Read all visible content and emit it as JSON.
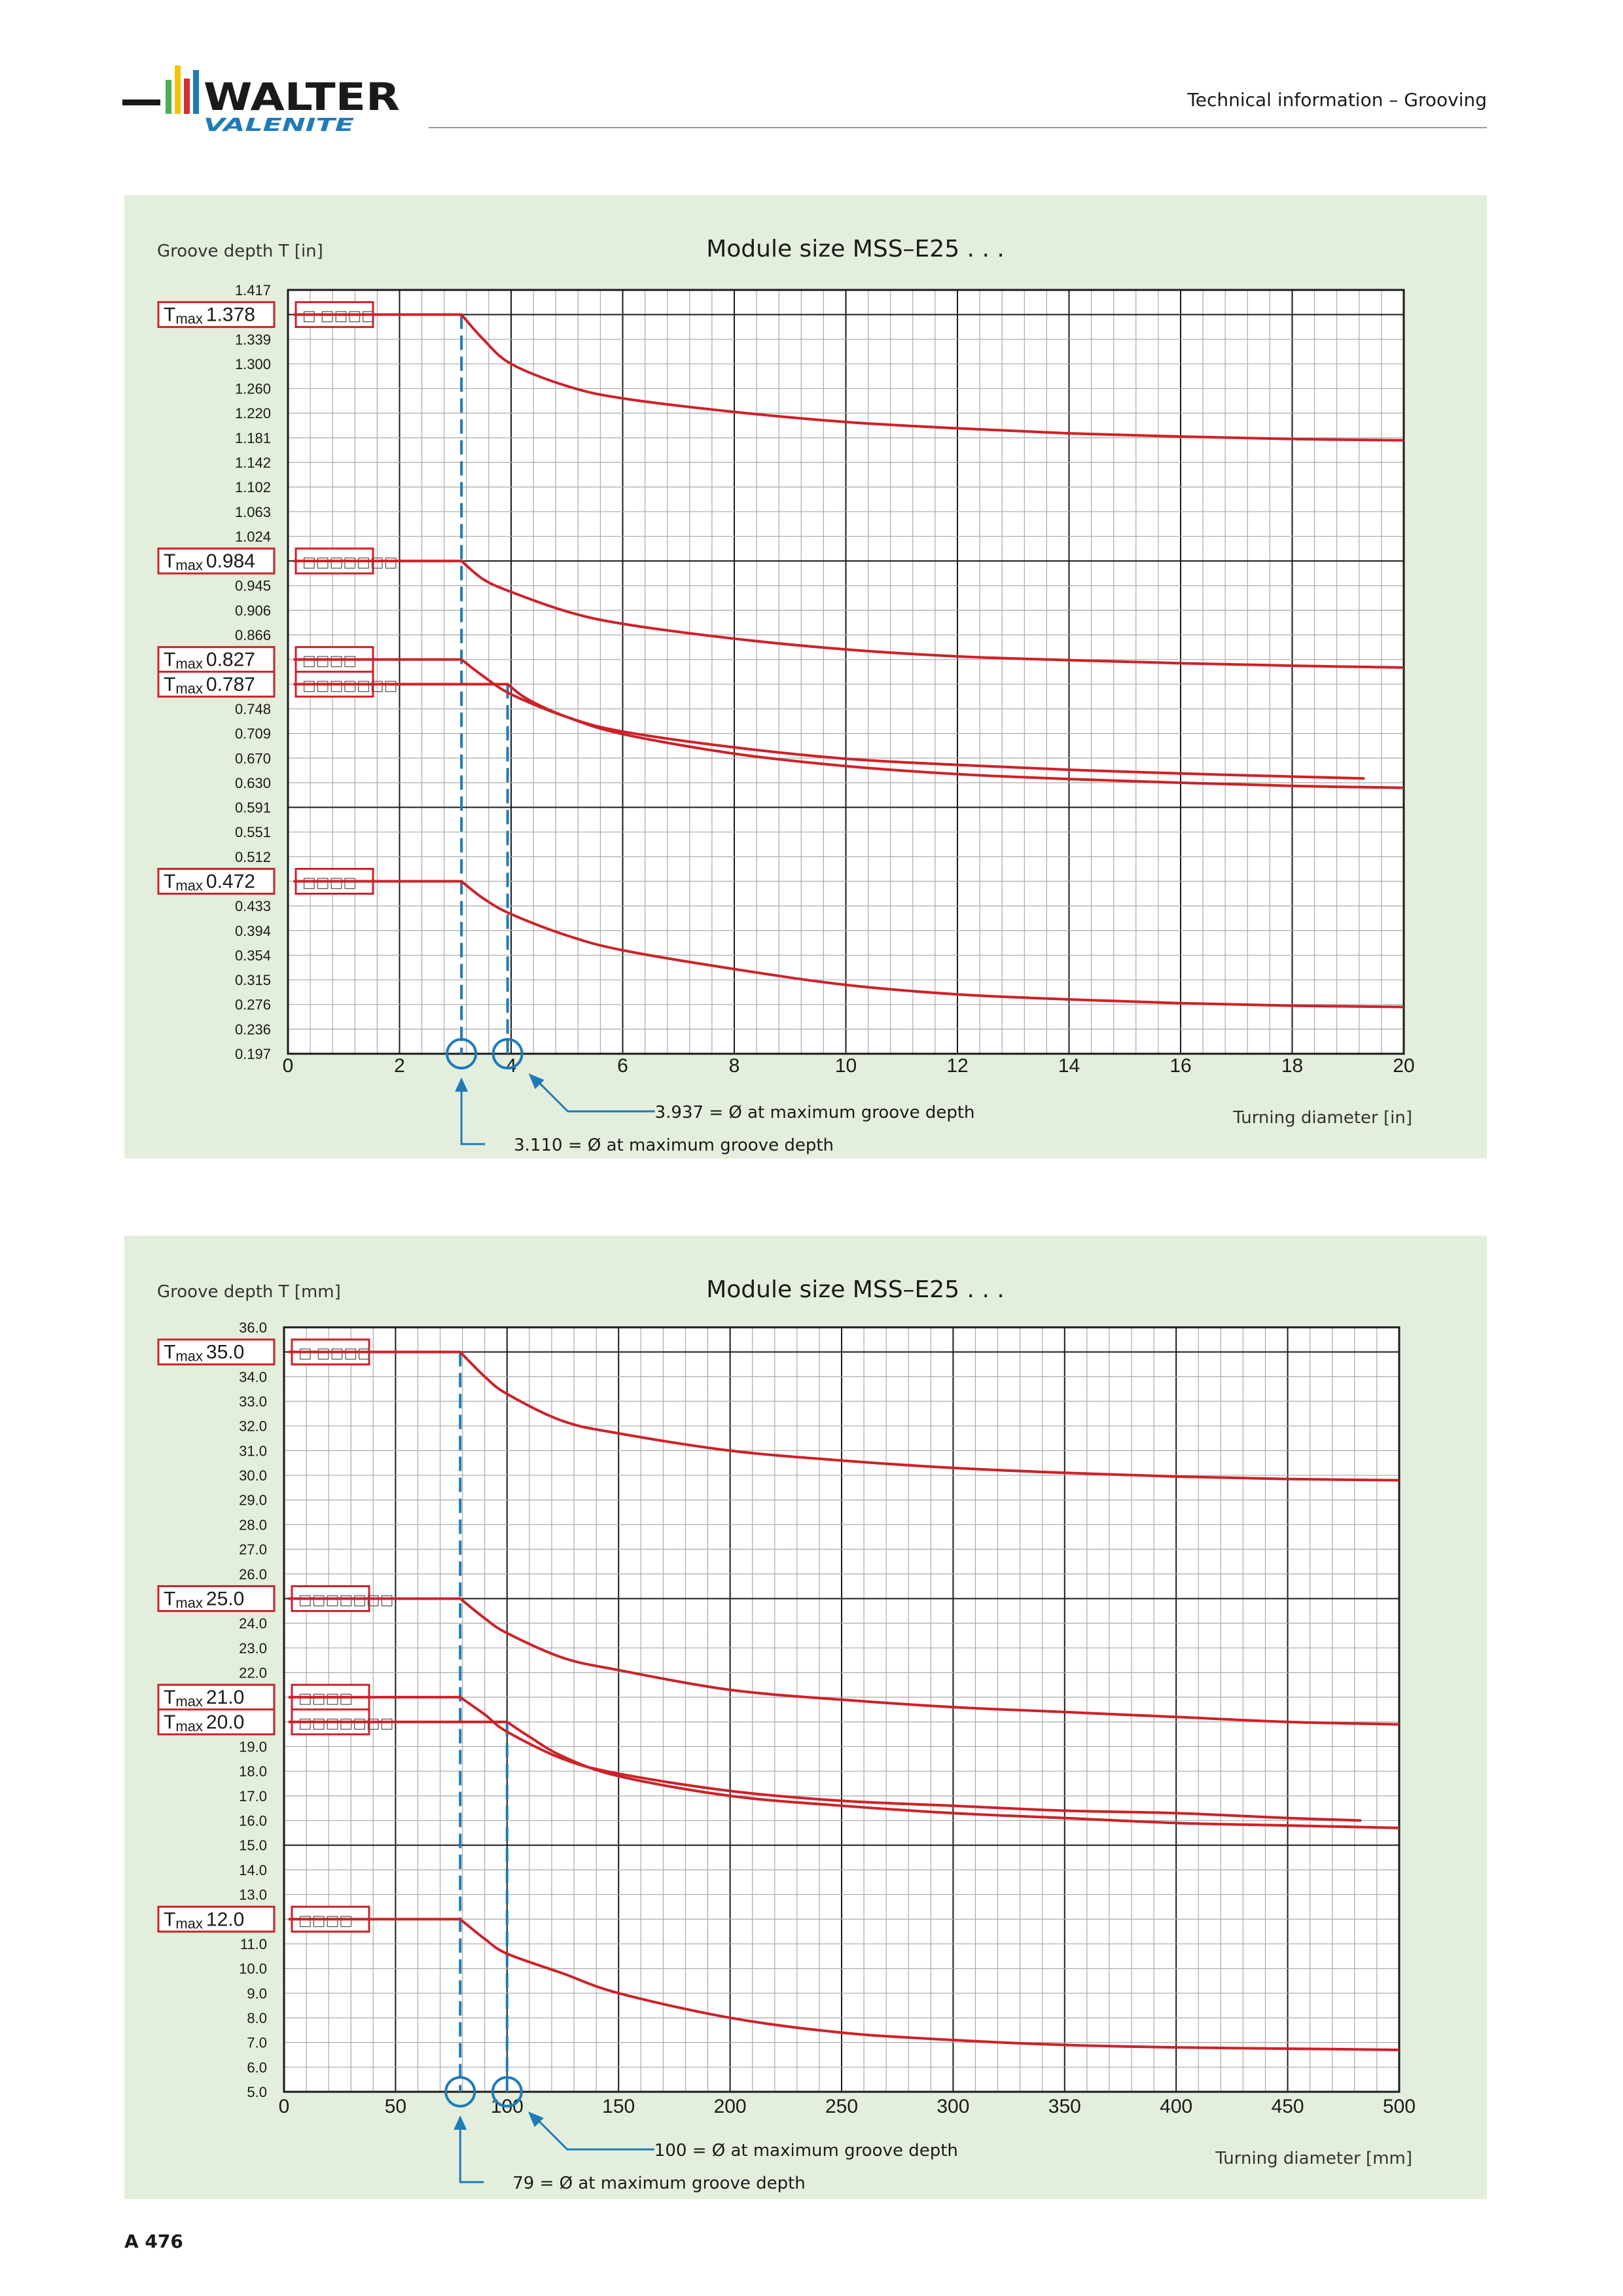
{
  "header": {
    "brand_name": "WALTER",
    "brand_sub": "VALENITE",
    "section_title": "Technical information – Grooving"
  },
  "footer": {
    "page_number": "A 476"
  },
  "colors": {
    "panel_bg": "#e3efdc",
    "curve": "#cc2229",
    "helper": "#1f7bb8",
    "grid_major": "#1a1a1a",
    "grid_minor": "#a9a9a9"
  },
  "chart_data": [
    {
      "type": "line",
      "title": "Module size MSS–E25 . . .",
      "ylabel": "Groove depth T [in]",
      "xlabel": "Turning diameter [in]",
      "xlim": [
        0,
        20
      ],
      "ylim": [
        0.197,
        1.417
      ],
      "x_ticks": [
        "0",
        "2",
        "4",
        "6",
        "8",
        "10",
        "12",
        "14",
        "16",
        "18",
        "20"
      ],
      "y_ticks": [
        "1.417",
        "1.378",
        "1.339",
        "1.300",
        "1.260",
        "1.220",
        "1.181",
        "1.142",
        "1.102",
        "1.063",
        "1.024",
        "0.984",
        "0.945",
        "0.906",
        "0.866",
        "0.827",
        "0.787",
        "0.748",
        "0.709",
        "0.670",
        "0.630",
        "0.591",
        "0.551",
        "0.512",
        "0.472",
        "0.433",
        "0.394",
        "0.354",
        "0.315",
        "0.276",
        "0.236",
        "0.197"
      ],
      "tmax_prefix": "T",
      "tmax_sub": "max",
      "tmax_markers": [
        {
          "value": "1.378",
          "code": "□ □□□□"
        },
        {
          "value": "0.984",
          "code": "□□□□□□□"
        },
        {
          "value": "0.827",
          "code": "□□□□"
        },
        {
          "value": "0.787",
          "code": "□□□□□□□"
        },
        {
          "value": "0.472",
          "code": "□□□□"
        }
      ],
      "series": [
        {
          "points": [
            [
              0.1,
              1.378
            ],
            [
              3.11,
              1.378
            ],
            [
              3.5,
              1.339
            ],
            [
              4,
              1.3
            ],
            [
              5,
              1.264
            ],
            [
              6,
              1.244
            ],
            [
              8,
              1.222
            ],
            [
              10,
              1.206
            ],
            [
              12,
              1.196
            ],
            [
              14,
              1.188
            ],
            [
              16,
              1.183
            ],
            [
              18,
              1.179
            ],
            [
              20,
              1.177
            ]
          ]
        },
        {
          "points": [
            [
              0.1,
              0.984
            ],
            [
              3.11,
              0.984
            ],
            [
              3.5,
              0.955
            ],
            [
              4,
              0.935
            ],
            [
              5,
              0.904
            ],
            [
              6,
              0.884
            ],
            [
              8,
              0.86
            ],
            [
              10,
              0.843
            ],
            [
              12,
              0.832
            ],
            [
              14,
              0.826
            ],
            [
              16,
              0.821
            ],
            [
              18,
              0.817
            ],
            [
              20,
              0.814
            ]
          ]
        },
        {
          "points": [
            [
              0.1,
              0.827
            ],
            [
              3.11,
              0.827
            ],
            [
              3.5,
              0.8
            ],
            [
              4,
              0.771
            ],
            [
              5,
              0.735
            ],
            [
              6,
              0.712
            ],
            [
              8,
              0.687
            ],
            [
              10,
              0.669
            ],
            [
              12,
              0.659
            ],
            [
              14,
              0.651
            ],
            [
              16,
              0.645
            ],
            [
              18,
              0.64
            ],
            [
              19.3,
              0.637
            ]
          ]
        },
        {
          "points": [
            [
              0.1,
              0.787
            ],
            [
              3.937,
              0.787
            ],
            [
              4.3,
              0.763
            ],
            [
              5,
              0.735
            ],
            [
              6,
              0.708
            ],
            [
              8,
              0.677
            ],
            [
              10,
              0.657
            ],
            [
              12,
              0.644
            ],
            [
              14,
              0.636
            ],
            [
              16,
              0.63
            ],
            [
              18,
              0.625
            ],
            [
              20,
              0.622
            ]
          ]
        },
        {
          "points": [
            [
              0.1,
              0.472
            ],
            [
              3.11,
              0.472
            ],
            [
              3.5,
              0.445
            ],
            [
              4,
              0.42
            ],
            [
              5,
              0.386
            ],
            [
              6,
              0.362
            ],
            [
              8,
              0.332
            ],
            [
              10,
              0.307
            ],
            [
              12,
              0.292
            ],
            [
              14,
              0.284
            ],
            [
              16,
              0.278
            ],
            [
              18,
              0.274
            ],
            [
              20,
              0.272
            ]
          ]
        }
      ],
      "guides": [
        {
          "x": 3.11,
          "from": 1.378,
          "label": "3.110 = Ø at maximum groove depth"
        },
        {
          "x": 3.937,
          "from": 0.787,
          "label": "3.937 = Ø at maximum groove depth"
        }
      ]
    },
    {
      "type": "line",
      "title": "Module size MSS–E25 . . .",
      "ylabel": "Groove depth T [mm]",
      "xlabel": "Turning diameter [mm]",
      "xlim": [
        0,
        500
      ],
      "ylim": [
        5.0,
        36.0
      ],
      "x_ticks": [
        "0",
        "50",
        "100",
        "150",
        "200",
        "250",
        "300",
        "350",
        "400",
        "450",
        "500"
      ],
      "y_ticks": [
        "36.0",
        "35.0",
        "34.0",
        "33.0",
        "32.0",
        "31.0",
        "30.0",
        "29.0",
        "28.0",
        "27.0",
        "26.0",
        "25.0",
        "24.0",
        "23.0",
        "22.0",
        "21.0",
        "20.0",
        "19.0",
        "18.0",
        "17.0",
        "16.0",
        "15.0",
        "14.0",
        "13.0",
        "12.0",
        "11.0",
        "10.0",
        "9.0",
        "8.0",
        "7.0",
        "6.0",
        "5.0"
      ],
      "tmax_prefix": "T",
      "tmax_sub": "max",
      "tmax_markers": [
        {
          "value": "35.0",
          "code": "□ □□□□"
        },
        {
          "value": "25.0",
          "code": "□□□□□□□"
        },
        {
          "value": "21.0",
          "code": "□□□□"
        },
        {
          "value": "20.0",
          "code": "□□□□□□□"
        },
        {
          "value": "12.0",
          "code": "□□□□"
        }
      ],
      "series": [
        {
          "points": [
            [
              2,
              35.0
            ],
            [
              79,
              35.0
            ],
            [
              90,
              34.0
            ],
            [
              100,
              33.3
            ],
            [
              125,
              32.2
            ],
            [
              150,
              31.7
            ],
            [
              200,
              31.0
            ],
            [
              250,
              30.6
            ],
            [
              300,
              30.3
            ],
            [
              350,
              30.1
            ],
            [
              400,
              29.95
            ],
            [
              450,
              29.85
            ],
            [
              500,
              29.8
            ]
          ]
        },
        {
          "points": [
            [
              2,
              25.0
            ],
            [
              79,
              25.0
            ],
            [
              90,
              24.2
            ],
            [
              100,
              23.6
            ],
            [
              125,
              22.6
            ],
            [
              150,
              22.1
            ],
            [
              200,
              21.3
            ],
            [
              250,
              20.9
            ],
            [
              300,
              20.6
            ],
            [
              350,
              20.4
            ],
            [
              400,
              20.2
            ],
            [
              450,
              20.0
            ],
            [
              500,
              19.9
            ]
          ]
        },
        {
          "points": [
            [
              2,
              21.0
            ],
            [
              79,
              21.0
            ],
            [
              90,
              20.3
            ],
            [
              100,
              19.6
            ],
            [
              125,
              18.5
            ],
            [
              150,
              17.9
            ],
            [
              200,
              17.2
            ],
            [
              250,
              16.8
            ],
            [
              300,
              16.6
            ],
            [
              350,
              16.4
            ],
            [
              400,
              16.3
            ],
            [
              450,
              16.1
            ],
            [
              483,
              16.0
            ]
          ]
        },
        {
          "points": [
            [
              2,
              20.0
            ],
            [
              100,
              20.0
            ],
            [
              110,
              19.4
            ],
            [
              125,
              18.6
            ],
            [
              150,
              17.8
            ],
            [
              200,
              17.0
            ],
            [
              250,
              16.6
            ],
            [
              300,
              16.3
            ],
            [
              350,
              16.1
            ],
            [
              400,
              15.9
            ],
            [
              450,
              15.8
            ],
            [
              500,
              15.7
            ]
          ]
        },
        {
          "points": [
            [
              2,
              12.0
            ],
            [
              79,
              12.0
            ],
            [
              90,
              11.2
            ],
            [
              100,
              10.6
            ],
            [
              125,
              9.8
            ],
            [
              150,
              9.0
            ],
            [
              200,
              8.0
            ],
            [
              250,
              7.4
            ],
            [
              300,
              7.1
            ],
            [
              350,
              6.9
            ],
            [
              400,
              6.8
            ],
            [
              450,
              6.75
            ],
            [
              500,
              6.7
            ]
          ]
        }
      ],
      "guides": [
        {
          "x": 79,
          "from": 35.0,
          "label": "79 = Ø at maximum groove depth"
        },
        {
          "x": 100,
          "from": 20.0,
          "label": "100 = Ø at maximum groove depth"
        }
      ]
    }
  ]
}
